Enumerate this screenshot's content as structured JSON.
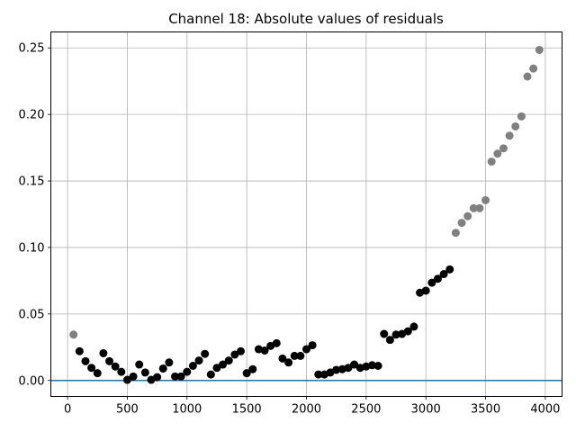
{
  "chart_data": {
    "type": "scatter",
    "title": "Channel 18: Absolute values of residuals",
    "xlabel": "",
    "ylabel": "",
    "xlim": [
      -140,
      4140
    ],
    "ylim": [
      -0.012,
      0.262
    ],
    "grid": true,
    "xticks": [
      0,
      500,
      1000,
      1500,
      2000,
      2500,
      3000,
      3500,
      4000
    ],
    "xtick_labels": [
      "0",
      "500",
      "1000",
      "1500",
      "2000",
      "2500",
      "3000",
      "3500",
      "4000"
    ],
    "yticks": [
      0.0,
      0.05,
      0.1,
      0.15,
      0.2,
      0.25
    ],
    "ytick_labels": [
      "0.00",
      "0.05",
      "0.10",
      "0.15",
      "0.20",
      "0.25"
    ],
    "reference_line": {
      "y": 0,
      "color": "#1f77b4"
    },
    "series": [
      {
        "color": "#808080",
        "points": [
          [
            50,
            0.0345
          ],
          [
            3250,
            0.111
          ],
          [
            3300,
            0.1185
          ],
          [
            3350,
            0.1235
          ],
          [
            3400,
            0.1295
          ],
          [
            3450,
            0.1295
          ],
          [
            3500,
            0.1355
          ],
          [
            3550,
            0.1645
          ],
          [
            3600,
            0.1705
          ],
          [
            3650,
            0.1745
          ],
          [
            3700,
            0.184
          ],
          [
            3750,
            0.191
          ],
          [
            3800,
            0.1985
          ],
          [
            3850,
            0.2285
          ],
          [
            3900,
            0.2345
          ],
          [
            3950,
            0.2485
          ]
        ]
      },
      {
        "color": "#000000",
        "points": [
          [
            100,
            0.022
          ],
          [
            150,
            0.0145
          ],
          [
            200,
            0.0095
          ],
          [
            250,
            0.0055
          ],
          [
            300,
            0.0205
          ],
          [
            350,
            0.0145
          ],
          [
            400,
            0.0105
          ],
          [
            450,
            0.0065
          ],
          [
            500,
            0.0005
          ],
          [
            550,
            0.003
          ],
          [
            600,
            0.012
          ],
          [
            650,
            0.006
          ],
          [
            700,
            0.0005
          ],
          [
            750,
            0.0025
          ],
          [
            800,
            0.009
          ],
          [
            850,
            0.0135
          ],
          [
            900,
            0.003
          ],
          [
            950,
            0.003
          ],
          [
            1000,
            0.0065
          ],
          [
            1050,
            0.011
          ],
          [
            1100,
            0.015
          ],
          [
            1150,
            0.02
          ],
          [
            1200,
            0.0045
          ],
          [
            1250,
            0.0095
          ],
          [
            1300,
            0.012
          ],
          [
            1350,
            0.015
          ],
          [
            1400,
            0.0195
          ],
          [
            1450,
            0.022
          ],
          [
            1500,
            0.0055
          ],
          [
            1550,
            0.0085
          ],
          [
            1600,
            0.0235
          ],
          [
            1650,
            0.0225
          ],
          [
            1700,
            0.026
          ],
          [
            1750,
            0.028
          ],
          [
            1800,
            0.0165
          ],
          [
            1850,
            0.0135
          ],
          [
            1900,
            0.0185
          ],
          [
            1950,
            0.0185
          ],
          [
            2000,
            0.0235
          ],
          [
            2050,
            0.0265
          ],
          [
            2100,
            0.0045
          ],
          [
            2150,
            0.0045
          ],
          [
            2200,
            0.006
          ],
          [
            2250,
            0.008
          ],
          [
            2300,
            0.0085
          ],
          [
            2350,
            0.0095
          ],
          [
            2400,
            0.012
          ],
          [
            2450,
            0.0095
          ],
          [
            2500,
            0.0105
          ],
          [
            2550,
            0.0115
          ],
          [
            2600,
            0.011
          ],
          [
            2650,
            0.035
          ],
          [
            2700,
            0.0305
          ],
          [
            2750,
            0.0345
          ],
          [
            2800,
            0.035
          ],
          [
            2850,
            0.037
          ],
          [
            2900,
            0.0405
          ],
          [
            2950,
            0.066
          ],
          [
            3000,
            0.0675
          ],
          [
            3050,
            0.0735
          ],
          [
            3100,
            0.0765
          ],
          [
            3150,
            0.08
          ],
          [
            3200,
            0.0835
          ]
        ]
      }
    ]
  }
}
